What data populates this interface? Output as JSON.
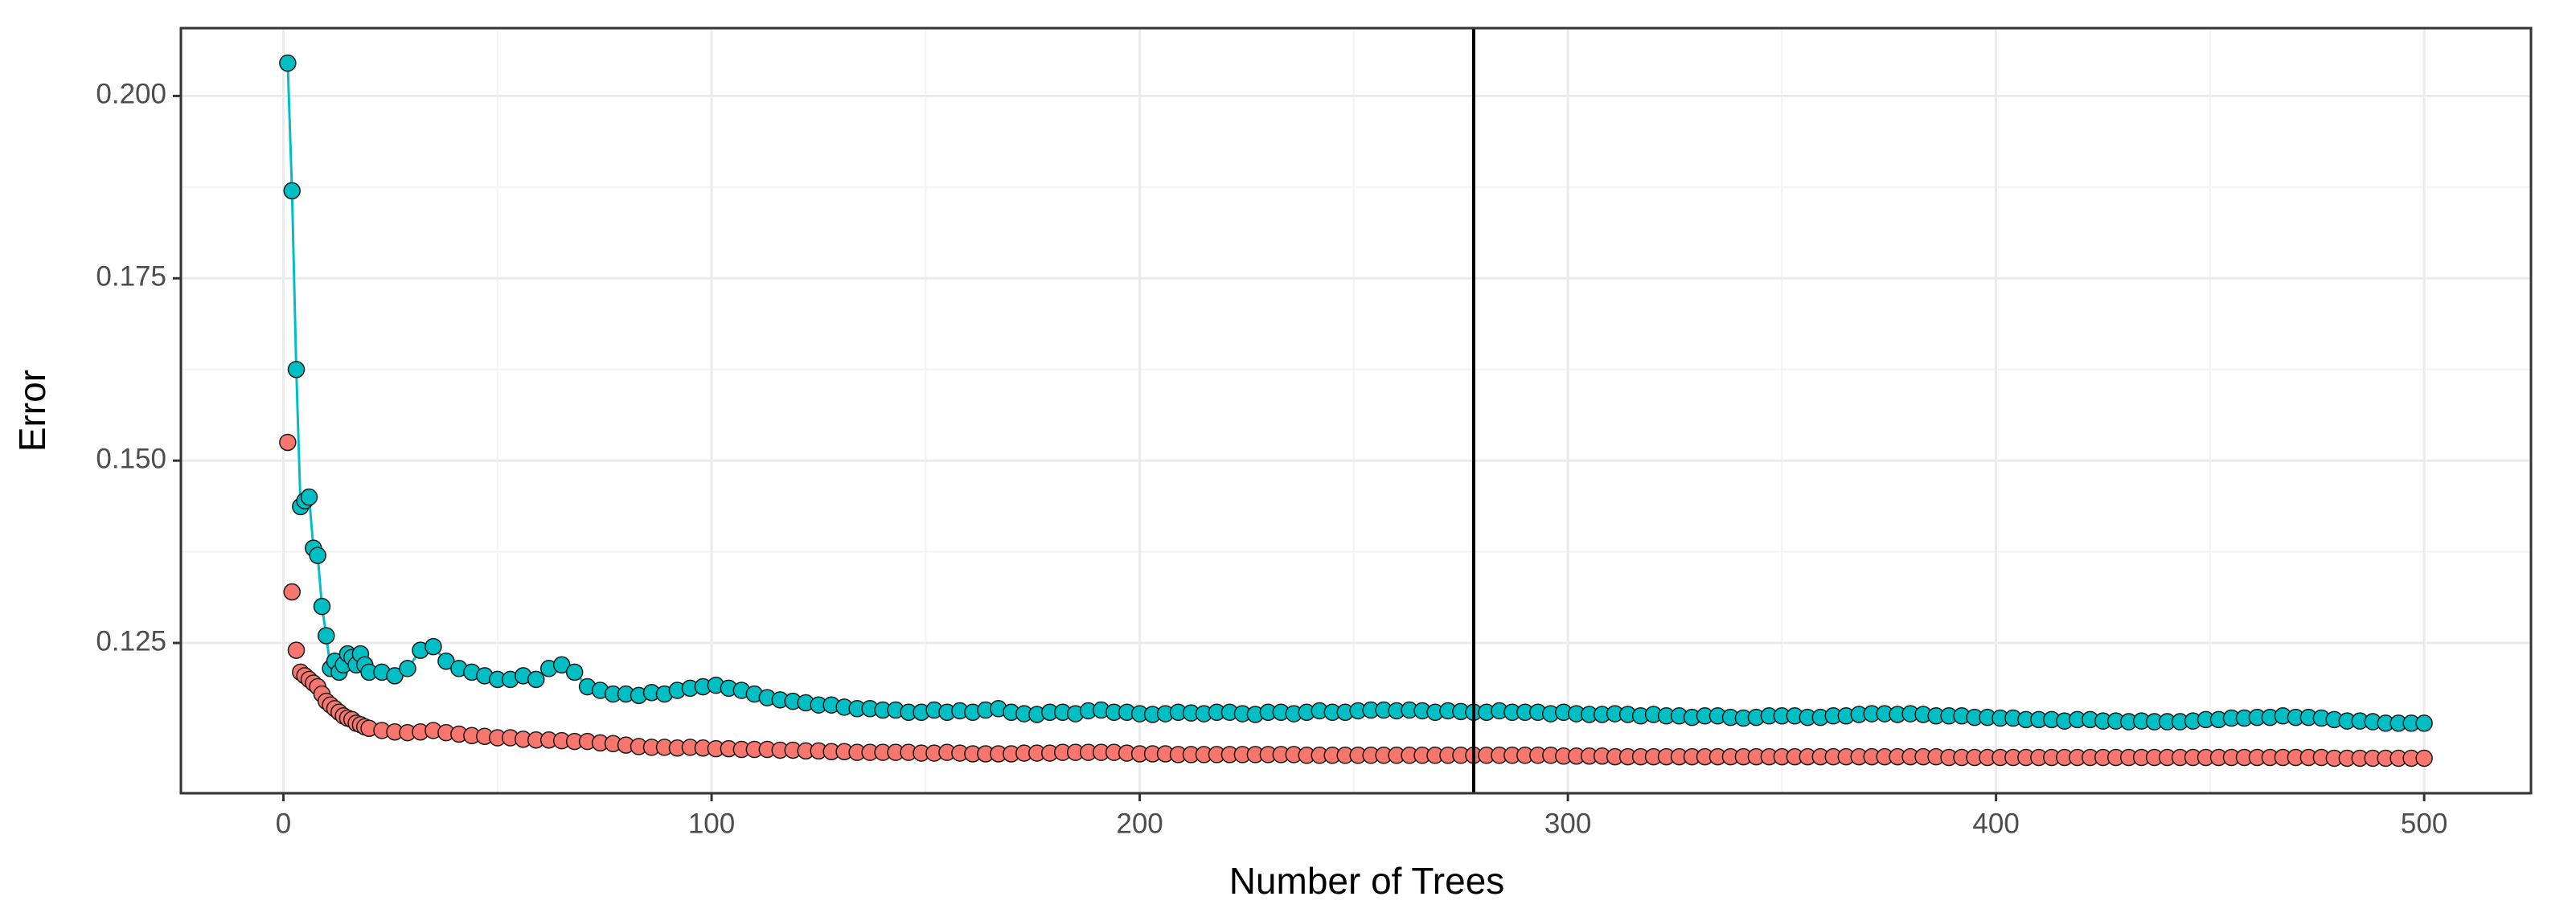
{
  "chart_data": {
    "type": "scatter",
    "xlabel": "Number of Trees",
    "ylabel": "Error",
    "xlim": [
      -23.95,
      524.95
    ],
    "ylim": [
      0.1044,
      0.2093
    ],
    "xticks": [
      0,
      100,
      200,
      300,
      400,
      500
    ],
    "yticks": [
      0.125,
      {
        "value": 0.15,
        "label": "0.150"
      },
      0.175,
      {
        "value": 0.2,
        "label": "0.200"
      }
    ],
    "grid": true,
    "vline": 278,
    "x": [
      1,
      2,
      3,
      4,
      5,
      6,
      7,
      8,
      9,
      10,
      11,
      12,
      13,
      14,
      15,
      16,
      17,
      18,
      19,
      20,
      23,
      26,
      29,
      32,
      35,
      38,
      41,
      44,
      47,
      50,
      53,
      56,
      59,
      62,
      65,
      68,
      71,
      74,
      77,
      80,
      83,
      86,
      89,
      92,
      95,
      98,
      101,
      104,
      107,
      110,
      113,
      116,
      119,
      122,
      125,
      128,
      131,
      134,
      137,
      140,
      143,
      146,
      149,
      152,
      155,
      158,
      161,
      164,
      167,
      170,
      173,
      176,
      179,
      182,
      185,
      188,
      191,
      194,
      197,
      200,
      203,
      206,
      209,
      212,
      215,
      218,
      221,
      224,
      227,
      230,
      233,
      236,
      239,
      242,
      245,
      248,
      251,
      254,
      257,
      260,
      263,
      266,
      269,
      272,
      275,
      278,
      281,
      284,
      287,
      290,
      293,
      296,
      299,
      302,
      305,
      308,
      311,
      314,
      317,
      320,
      323,
      326,
      329,
      332,
      335,
      338,
      341,
      344,
      347,
      350,
      353,
      356,
      359,
      362,
      365,
      368,
      371,
      374,
      377,
      380,
      383,
      386,
      389,
      392,
      395,
      398,
      401,
      404,
      407,
      410,
      413,
      416,
      419,
      422,
      425,
      428,
      431,
      434,
      437,
      440,
      443,
      446,
      449,
      452,
      455,
      458,
      461,
      464,
      467,
      470,
      473,
      476,
      479,
      482,
      485,
      488,
      491,
      494,
      497,
      500
    ],
    "series": [
      {
        "color": "#F8766D",
        "line": false,
        "values": [
          0.1525,
          0.132,
          0.124,
          0.121,
          0.1205,
          0.12,
          0.1195,
          0.119,
          0.118,
          0.117,
          0.1165,
          0.116,
          0.1155,
          0.115,
          0.1147,
          0.1145,
          0.114,
          0.1138,
          0.1135,
          0.1133,
          0.113,
          0.1128,
          0.1127,
          0.1128,
          0.113,
          0.1127,
          0.1125,
          0.1123,
          0.1122,
          0.112,
          0.112,
          0.1118,
          0.1117,
          0.1117,
          0.1116,
          0.1115,
          0.1115,
          0.1113,
          0.1112,
          0.111,
          0.1108,
          0.1107,
          0.1107,
          0.1106,
          0.1107,
          0.1106,
          0.1105,
          0.1105,
          0.1104,
          0.1104,
          0.1104,
          0.1103,
          0.1103,
          0.1102,
          0.1102,
          0.1101,
          0.1101,
          0.11,
          0.11,
          0.11,
          0.11,
          0.11,
          0.1099,
          0.1099,
          0.11,
          0.1099,
          0.1098,
          0.1098,
          0.1098,
          0.1098,
          0.1099,
          0.1099,
          0.1099,
          0.11,
          0.11,
          0.11,
          0.11,
          0.11,
          0.1099,
          0.1098,
          0.1098,
          0.1098,
          0.1097,
          0.1097,
          0.1097,
          0.1097,
          0.1097,
          0.1097,
          0.1097,
          0.1097,
          0.1097,
          0.1097,
          0.1096,
          0.1096,
          0.1096,
          0.1096,
          0.1096,
          0.1096,
          0.1096,
          0.1096,
          0.1096,
          0.1096,
          0.1096,
          0.1096,
          0.1096,
          0.1096,
          0.1096,
          0.1096,
          0.1096,
          0.1096,
          0.1096,
          0.1096,
          0.1095,
          0.1095,
          0.1095,
          0.1095,
          0.1094,
          0.1094,
          0.1094,
          0.1094,
          0.1094,
          0.1094,
          0.1094,
          0.1094,
          0.1094,
          0.1094,
          0.1094,
          0.1094,
          0.1094,
          0.1094,
          0.1094,
          0.1094,
          0.1094,
          0.1094,
          0.1094,
          0.1094,
          0.1094,
          0.1094,
          0.1094,
          0.1094,
          0.1094,
          0.1094,
          0.1093,
          0.1093,
          0.1093,
          0.1093,
          0.1093,
          0.1093,
          0.1093,
          0.1093,
          0.1093,
          0.1093,
          0.1093,
          0.1093,
          0.1093,
          0.1093,
          0.1093,
          0.1093,
          0.1093,
          0.1093,
          0.1093,
          0.1093,
          0.1093,
          0.1093,
          0.1093,
          0.1093,
          0.1093,
          0.1093,
          0.1093,
          0.1093,
          0.1093,
          0.1093,
          0.1092,
          0.1092,
          0.1092,
          0.1092,
          0.1092,
          0.1092,
          0.1092,
          0.1092
        ]
      },
      {
        "color": "#00BFC4",
        "line": true,
        "values": [
          0.2045,
          0.187,
          0.1625,
          0.1437,
          0.1445,
          0.145,
          0.138,
          0.137,
          0.13,
          0.126,
          0.1215,
          0.1225,
          0.121,
          0.122,
          0.1235,
          0.123,
          0.122,
          0.1235,
          0.122,
          0.121,
          0.121,
          0.1205,
          0.1215,
          0.124,
          0.1245,
          0.1225,
          0.1215,
          0.121,
          0.1205,
          0.12,
          0.12,
          0.1205,
          0.12,
          0.1215,
          0.122,
          0.121,
          0.119,
          0.1185,
          0.118,
          0.118,
          0.1178,
          0.1182,
          0.118,
          0.1185,
          0.1188,
          0.119,
          0.1192,
          0.1188,
          0.1185,
          0.118,
          0.1175,
          0.1172,
          0.117,
          0.1168,
          0.1165,
          0.1165,
          0.1162,
          0.116,
          0.116,
          0.1158,
          0.1158,
          0.1155,
          0.1155,
          0.1158,
          0.1155,
          0.1157,
          0.1155,
          0.1158,
          0.116,
          0.1155,
          0.1153,
          0.1152,
          0.1155,
          0.1155,
          0.1153,
          0.1157,
          0.1158,
          0.1155,
          0.1155,
          0.1153,
          0.1152,
          0.1153,
          0.1155,
          0.1154,
          0.1153,
          0.1155,
          0.1155,
          0.1153,
          0.1152,
          0.1155,
          0.1155,
          0.1153,
          0.1155,
          0.1157,
          0.1155,
          0.1155,
          0.1157,
          0.1158,
          0.1158,
          0.1157,
          0.1158,
          0.1157,
          0.1155,
          0.1157,
          0.1156,
          0.1155,
          0.1155,
          0.1157,
          0.1155,
          0.1155,
          0.1155,
          0.1153,
          0.1155,
          0.1153,
          0.1152,
          0.1152,
          0.1153,
          0.1152,
          0.115,
          0.1152,
          0.115,
          0.115,
          0.1148,
          0.115,
          0.115,
          0.1148,
          0.1147,
          0.1148,
          0.115,
          0.115,
          0.115,
          0.1148,
          0.1148,
          0.115,
          0.115,
          0.1152,
          0.1153,
          0.1153,
          0.1152,
          0.1153,
          0.1152,
          0.115,
          0.115,
          0.115,
          0.1148,
          0.1148,
          0.1147,
          0.1147,
          0.1145,
          0.1145,
          0.1145,
          0.1143,
          0.1145,
          0.1145,
          0.1143,
          0.1143,
          0.1142,
          0.1143,
          0.1142,
          0.1142,
          0.1142,
          0.1143,
          0.1145,
          0.1145,
          0.1147,
          0.1147,
          0.1148,
          0.1148,
          0.115,
          0.1148,
          0.1148,
          0.1147,
          0.1145,
          0.1143,
          0.1143,
          0.1142,
          0.114,
          0.114,
          0.114,
          0.114
        ]
      }
    ]
  }
}
